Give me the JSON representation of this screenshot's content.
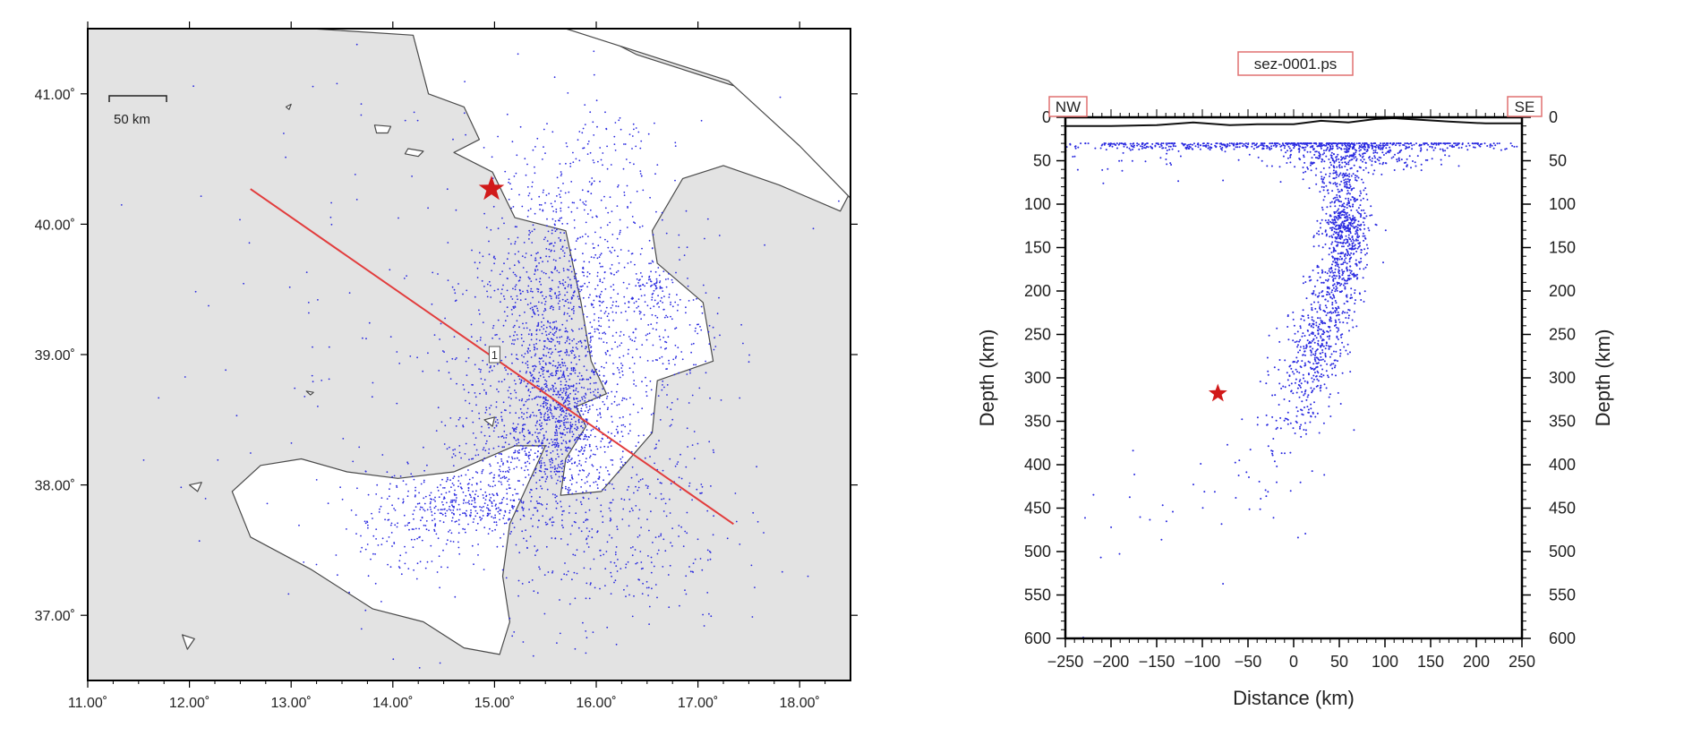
{
  "colors": {
    "sea": "#e3e3e3",
    "land": "#ffffff",
    "coast": "#4a4a4a",
    "quake": "#2a2ae0",
    "profile_line": "#e23c3c",
    "star": "#d11a1a",
    "label_box_border": "#e07070",
    "frame": "#000000"
  },
  "chart_data": [
    {
      "type": "scatter",
      "subtype": "epicenter-map",
      "title": "",
      "xlim": [
        11.0,
        18.5
      ],
      "ylim": [
        36.5,
        41.5
      ],
      "x_ticks": [
        11,
        12,
        13,
        14,
        15,
        16,
        17,
        18
      ],
      "x_tick_labels": [
        "11.00˚",
        "12.00˚",
        "13.00˚",
        "14.00˚",
        "15.00˚",
        "16.00˚",
        "17.00˚",
        "18.00˚"
      ],
      "y_ticks": [
        37,
        38,
        39,
        40,
        41
      ],
      "y_tick_labels": [
        "37.00˚",
        "38.00˚",
        "39.00˚",
        "40.00˚",
        "41.00˚"
      ],
      "scale_bar_label": "50 km",
      "profile_label": "1",
      "profile": {
        "start": [
          12.6,
          40.27
        ],
        "end": [
          17.35,
          37.7
        ]
      },
      "event_star": {
        "lon": 14.97,
        "lat": 40.27
      },
      "clusters": [
        {
          "lon": 15.65,
          "lat": 38.45,
          "slon": 0.22,
          "slat": 0.28,
          "n": 520
        },
        {
          "lon": 15.6,
          "lat": 38.9,
          "slon": 0.38,
          "slat": 0.55,
          "n": 720
        },
        {
          "lon": 15.7,
          "lat": 39.55,
          "slon": 0.45,
          "slat": 0.45,
          "n": 380
        },
        {
          "lon": 14.75,
          "lat": 37.85,
          "slon": 0.3,
          "slat": 0.12,
          "n": 260
        },
        {
          "lon": 14.1,
          "lat": 37.7,
          "slon": 0.35,
          "slat": 0.22,
          "n": 160
        },
        {
          "lon": 15.05,
          "lat": 38.25,
          "slon": 0.22,
          "slat": 0.2,
          "n": 150
        },
        {
          "lon": 16.1,
          "lat": 37.75,
          "slon": 0.6,
          "slat": 0.45,
          "n": 420
        },
        {
          "lon": 16.6,
          "lat": 39.15,
          "slon": 0.35,
          "slat": 0.35,
          "n": 190
        },
        {
          "lon": 16.6,
          "lat": 39.5,
          "slon": 0.12,
          "slat": 0.08,
          "n": 60
        },
        {
          "lon": 16.1,
          "lat": 40.5,
          "slon": 0.3,
          "slat": 0.25,
          "n": 70
        },
        {
          "lon": 15.5,
          "lat": 40.2,
          "slon": 0.35,
          "slat": 0.3,
          "n": 90
        },
        {
          "lon": 15.2,
          "lat": 38.85,
          "slon": 0.5,
          "slat": 0.4,
          "n": 160
        },
        {
          "lon": 14.8,
          "lat": 39.0,
          "slon": 1.7,
          "slat": 1.4,
          "n": 220
        }
      ]
    },
    {
      "type": "scatter",
      "subtype": "depth-cross-section",
      "title": "sez-0001.ps",
      "xlabel": "Distance (km)",
      "ylabel": "Depth (km)",
      "ylabel_right": "Depth (km)",
      "xlim": [
        -250,
        250
      ],
      "ylim": [
        600,
        0
      ],
      "end_labels": [
        "NW",
        "SE"
      ],
      "x_ticks": [
        -250,
        -200,
        -150,
        -100,
        -50,
        0,
        50,
        100,
        150,
        200,
        250
      ],
      "x_tick_labels": [
        "−250",
        "−200",
        "−150",
        "−100",
        "−50",
        "0",
        "50",
        "100",
        "150",
        "200",
        "250"
      ],
      "y_ticks": [
        0,
        50,
        100,
        150,
        200,
        250,
        300,
        350,
        400,
        450,
        500,
        550,
        600
      ],
      "y_tick_labels": [
        "0",
        "50",
        "100",
        "150",
        "200",
        "250",
        "300",
        "350",
        "400",
        "450",
        "500",
        "550",
        "600"
      ],
      "topography": {
        "x": [
          -250,
          -200,
          -150,
          -110,
          -70,
          -40,
          0,
          30,
          60,
          90,
          110,
          140,
          170,
          210,
          250
        ],
        "depth": [
          10,
          10,
          9,
          6,
          9,
          8,
          8,
          4,
          6,
          2,
          1,
          3,
          5,
          7,
          7
        ]
      },
      "event_star": {
        "distance": -83,
        "depth": 318
      },
      "clusters": [
        {
          "x": 0,
          "d": 32,
          "sx": 150,
          "sd": 3,
          "n": 620
        },
        {
          "x": 60,
          "d": 40,
          "sx": 50,
          "sd": 12,
          "n": 320
        },
        {
          "x": 55,
          "d": 80,
          "sx": 14,
          "sd": 25,
          "n": 220
        },
        {
          "x": 58,
          "d": 125,
          "sx": 12,
          "sd": 15,
          "n": 260
        },
        {
          "x": 55,
          "d": 165,
          "sx": 12,
          "sd": 25,
          "n": 220
        },
        {
          "x": 40,
          "d": 220,
          "sx": 15,
          "sd": 30,
          "n": 220
        },
        {
          "x": 20,
          "d": 275,
          "sx": 15,
          "sd": 25,
          "n": 220
        },
        {
          "x": 0,
          "d": 330,
          "sx": 20,
          "sd": 25,
          "n": 100
        },
        {
          "x": -20,
          "d": 400,
          "sx": 25,
          "sd": 45,
          "n": 35
        },
        {
          "x": -120,
          "d": 450,
          "sx": 70,
          "sd": 50,
          "n": 25
        },
        {
          "x": -150,
          "d": 50,
          "sx": 90,
          "sd": 10,
          "n": 40
        }
      ]
    }
  ]
}
